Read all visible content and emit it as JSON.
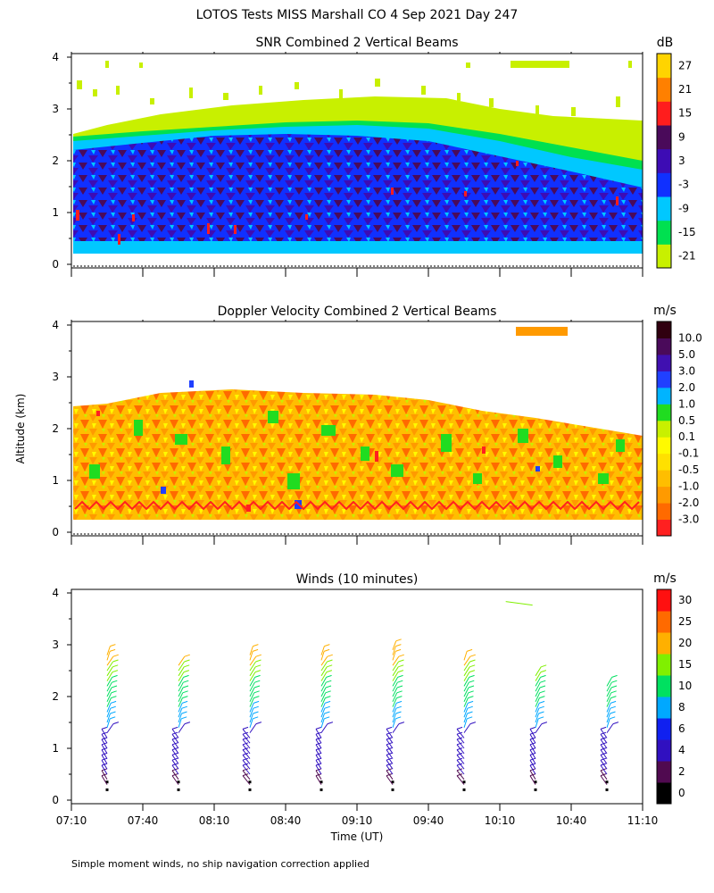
{
  "title": "LOTOS Tests MISS Marshall CO   4 Sep 2021 Day 247",
  "footnote": "Simple moment winds, no ship navigation correction applied",
  "y_axis_label": "Altitude (km)",
  "x_axis_label": "Time (UT)",
  "chart_data": [
    {
      "type": "heatmap",
      "title": "SNR Combined 2 Vertical Beams",
      "ylabel": "Altitude (km)",
      "ylim": [
        0,
        4
      ],
      "yticks": [
        "0",
        "1",
        "2",
        "3",
        "4"
      ],
      "xlim_time": [
        "07:10",
        "11:10"
      ],
      "colorbar": {
        "unit": "dB",
        "ticks": [
          "-21",
          "-15",
          "-9",
          "-3",
          "3",
          "9",
          "15",
          "21",
          "27"
        ],
        "colors": [
          "#c8f000",
          "#00e050",
          "#00c8ff",
          "#1030ff",
          "#3d0cb4",
          "#4a0a5a",
          "#ff1d1d",
          "#ff8000",
          "#ffd400"
        ]
      },
      "layers": [
        {
          "range_km": [
            0.25,
            2.4
          ],
          "category": "-9 to -3 dB (cyan)"
        },
        {
          "range_km": [
            0.3,
            2.2
          ],
          "category": "-3 to 9 dB (blue/purple core)"
        },
        {
          "range_km": [
            2.2,
            3.5
          ],
          "category": "-21 to -15 dB (sparse yellow-green)"
        }
      ]
    },
    {
      "type": "heatmap",
      "title": "Doppler Velocity Combined 2 Vertical Beams",
      "ylabel": "Altitude (km)",
      "ylim": [
        0,
        4
      ],
      "yticks": [
        "0",
        "1",
        "2",
        "3",
        "4"
      ],
      "colorbar": {
        "unit": "m/s",
        "ticks": [
          "-3.0",
          "-2.0",
          "-1.0",
          "-0.5",
          "-0.1",
          "0.1",
          "0.5",
          "1.0",
          "2.0",
          "3.0",
          "5.0",
          "10.0"
        ],
        "colors": [
          "#ff2020",
          "#ff6a00",
          "#ff9a00",
          "#ffbe00",
          "#ffe000",
          "#fffa00",
          "#c8f000",
          "#20dc20",
          "#00b4ff",
          "#2040ff",
          "#4010b0",
          "#4a0a5a",
          "#300010"
        ]
      },
      "data_range_km": [
        0.3,
        2.6
      ]
    },
    {
      "type": "scatter",
      "title": "Winds (10 minutes)",
      "ylabel": "Altitude (km)",
      "ylim": [
        0,
        4
      ],
      "yticks": [
        "0",
        "1",
        "2",
        "3",
        "4"
      ],
      "xticks": [
        "07:10",
        "07:40",
        "08:10",
        "08:40",
        "09:10",
        "09:40",
        "10:10",
        "10:40",
        "11:10"
      ],
      "xlabel": "Time (UT)",
      "colorbar": {
        "unit": "m/s",
        "ticks": [
          "0",
          "2",
          "4",
          "6",
          "8",
          "10",
          "15",
          "20",
          "25",
          "30"
        ],
        "colors": [
          "#000000",
          "#500a50",
          "#3010c0",
          "#1020f0",
          "#00a8ff",
          "#00e060",
          "#80f000",
          "#ffb000",
          "#ff6a00",
          "#ff1010"
        ]
      },
      "profiles": [
        {
          "time": "07:25",
          "top_km": 2.85
        },
        {
          "time": "07:55",
          "top_km": 2.65
        },
        {
          "time": "08:25",
          "top_km": 2.9
        },
        {
          "time": "08:55",
          "top_km": 2.85
        },
        {
          "time": "09:25",
          "top_km": 3.0
        },
        {
          "time": "09:55",
          "top_km": 2.75
        },
        {
          "time": "10:25",
          "top_km": 2.5
        },
        {
          "time": "10:55",
          "top_km": 2.25
        }
      ],
      "speed_bins_mps": [
        2,
        4,
        8,
        15,
        20
      ],
      "isolated_barb": {
        "time": "10:20",
        "alt_km": 3.8,
        "speed_mps": 15
      }
    }
  ]
}
